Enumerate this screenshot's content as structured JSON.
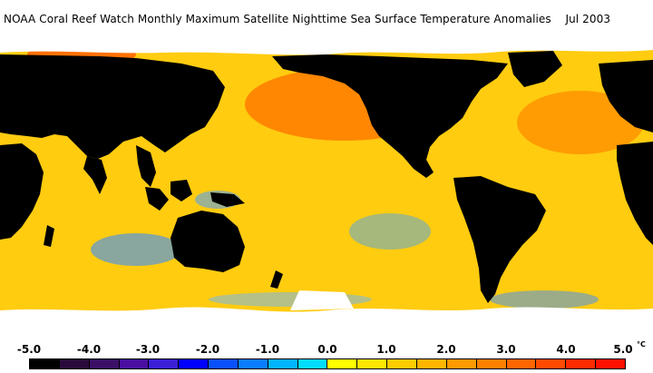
{
  "title": "NOAA Coral Reef Watch Monthly Maximum Satellite Nighttime Sea Surface Temperature Anomalies",
  "date": "Jul 2003",
  "legend": {
    "ticks": [
      "-5.0",
      "-4.0",
      "-3.0",
      "-2.0",
      "-1.0",
      "0.0",
      "1.0",
      "2.0",
      "3.0",
      "4.0",
      "5.0"
    ],
    "unit": "°C",
    "colors": [
      "#000000",
      "#2a0a3a",
      "#3b0f66",
      "#4a0fa0",
      "#3a1fd6",
      "#0000ff",
      "#0a50ff",
      "#0a7dff",
      "#00b4ff",
      "#00dcff",
      "#ffff00",
      "#ffe600",
      "#ffcc00",
      "#ffb400",
      "#ff9a00",
      "#ff8000",
      "#ff6600",
      "#ff4a00",
      "#ff2a00",
      "#ff1000"
    ]
  },
  "map": {
    "ocean_color": "#ffcc10",
    "land_color": "#000000",
    "ice_color": "#ffffff",
    "warm_anomaly_color": "#ff5a00",
    "cool_anomaly_color": "#2a8cff"
  }
}
